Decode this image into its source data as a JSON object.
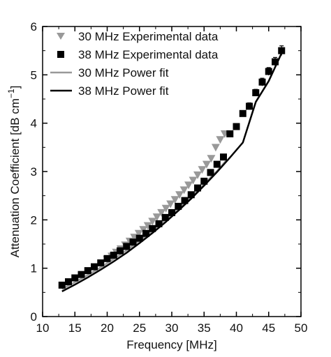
{
  "chart_data": {
    "type": "scatter",
    "xlabel": "Frequency [MHz]",
    "ylabel": "Attenuation Coefficient [dB cm",
    "ylabel_sup": "−1",
    "ylabel_tail": "]",
    "xlim": [
      10,
      50
    ],
    "ylim": [
      0,
      6
    ],
    "xticks": [
      10,
      15,
      20,
      25,
      30,
      35,
      40,
      45,
      50
    ],
    "yticks": [
      0,
      1,
      2,
      3,
      4,
      5,
      6
    ],
    "grid": false,
    "legend_position": "top-left",
    "series": [
      {
        "name": "30 MHz Experimental data",
        "kind": "points",
        "marker": "triangle-down",
        "color": "#999999",
        "x": [
          20,
          20.7,
          21.4,
          22.1,
          22.8,
          23.5,
          24.2,
          24.9,
          25.6,
          26.3,
          27.0,
          27.7,
          28.4,
          29.1,
          29.8,
          30.5,
          31.2,
          31.9,
          32.6,
          33.3,
          34.0,
          34.7,
          35.4,
          36.1,
          36.8,
          37.5,
          38.2
        ],
        "y": [
          1.18,
          1.25,
          1.33,
          1.4,
          1.48,
          1.56,
          1.64,
          1.72,
          1.8,
          1.88,
          1.97,
          2.06,
          2.15,
          2.24,
          2.33,
          2.42,
          2.52,
          2.62,
          2.72,
          2.82,
          2.93,
          3.04,
          3.15,
          3.27,
          3.5,
          3.66,
          3.78
        ]
      },
      {
        "name": "38 MHz Experimental data",
        "kind": "points",
        "marker": "square",
        "color": "#000000",
        "x": [
          13,
          14,
          15,
          16,
          17,
          18,
          19,
          20,
          21,
          22,
          23,
          24,
          25,
          26,
          27,
          28,
          29,
          30,
          31,
          32,
          33,
          34,
          35,
          36,
          37,
          38,
          39,
          40,
          41,
          42,
          43,
          44,
          45,
          46,
          47
        ],
        "y": [
          0.65,
          0.72,
          0.8,
          0.87,
          0.95,
          1.03,
          1.11,
          1.2,
          1.27,
          1.36,
          1.45,
          1.54,
          1.62,
          1.72,
          1.82,
          1.92,
          2.05,
          2.15,
          2.28,
          2.4,
          2.52,
          2.66,
          2.8,
          2.98,
          3.15,
          3.3,
          3.78,
          3.93,
          4.2,
          4.35,
          4.63,
          4.85,
          5.07,
          5.27,
          5.5
        ],
        "error": [
          0.05,
          0.05,
          0.05,
          0.05,
          0.05,
          0.05,
          0.05,
          0.05,
          0.05,
          0.05,
          0.05,
          0.05,
          0.05,
          0.05,
          0.05,
          0.05,
          0.05,
          0.05,
          0.05,
          0.05,
          0.05,
          0.05,
          0.05,
          0.05,
          0.05,
          0.05,
          0.06,
          0.06,
          0.06,
          0.07,
          0.07,
          0.08,
          0.08,
          0.09,
          0.1
        ]
      },
      {
        "name": "30 MHz Power fit",
        "kind": "line",
        "color": "#999999",
        "x": [
          13,
          15,
          17,
          19,
          21,
          23,
          25,
          27,
          29,
          31,
          33,
          35,
          37,
          38.5
        ],
        "y": [
          0.57,
          0.71,
          0.86,
          1.02,
          1.19,
          1.37,
          1.57,
          1.78,
          2.0,
          2.23,
          2.48,
          2.74,
          3.01,
          3.24
        ]
      },
      {
        "name": "38 MHz Power fit",
        "kind": "line",
        "color": "#000000",
        "x": [
          13,
          15,
          17,
          19,
          21,
          23,
          25,
          27,
          29,
          31,
          33,
          35,
          37,
          39,
          41,
          43,
          45,
          47
        ],
        "y": [
          0.52,
          0.66,
          0.81,
          0.97,
          1.14,
          1.32,
          1.52,
          1.73,
          1.95,
          2.19,
          2.44,
          2.71,
          2.99,
          3.29,
          3.6,
          4.44,
          4.87,
          5.45
        ]
      }
    ]
  }
}
